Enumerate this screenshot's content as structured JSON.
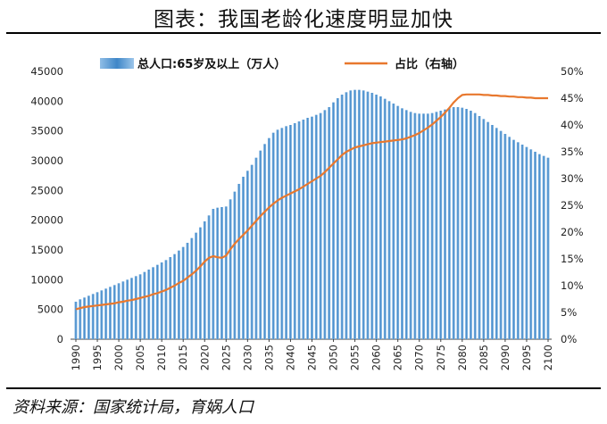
{
  "title": "图表：我国老龄化速度明显加快",
  "source": "资料来源：国家统计局，育娲人口",
  "colors": {
    "bars": "#4a8cc9",
    "line": "#e8782e"
  },
  "chart_data": {
    "type": "bar",
    "x": [
      1990,
      1991,
      1992,
      1993,
      1994,
      1995,
      1996,
      1997,
      1998,
      1999,
      2000,
      2001,
      2002,
      2003,
      2004,
      2005,
      2006,
      2007,
      2008,
      2009,
      2010,
      2011,
      2012,
      2013,
      2014,
      2015,
      2016,
      2017,
      2018,
      2019,
      2020,
      2021,
      2022,
      2023,
      2024,
      2025,
      2026,
      2027,
      2028,
      2029,
      2030,
      2031,
      2032,
      2033,
      2034,
      2035,
      2036,
      2037,
      2038,
      2039,
      2040,
      2041,
      2042,
      2043,
      2044,
      2045,
      2046,
      2047,
      2048,
      2049,
      2050,
      2051,
      2052,
      2053,
      2054,
      2055,
      2056,
      2057,
      2058,
      2059,
      2060,
      2061,
      2062,
      2063,
      2064,
      2065,
      2066,
      2067,
      2068,
      2069,
      2070,
      2071,
      2072,
      2073,
      2074,
      2075,
      2076,
      2077,
      2078,
      2079,
      2080,
      2081,
      2082,
      2083,
      2084,
      2085,
      2086,
      2087,
      2088,
      2089,
      2090,
      2091,
      2092,
      2093,
      2094,
      2095,
      2096,
      2097,
      2098,
      2099,
      2100
    ],
    "x_ticks": [
      "1990",
      "1995",
      "2000",
      "2005",
      "2010",
      "2015",
      "2020",
      "2025",
      "2030",
      "2035",
      "2040",
      "2045",
      "2050",
      "2055",
      "2060",
      "2065",
      "2070",
      "2075",
      "2080",
      "2085",
      "2090",
      "2095",
      "2100"
    ],
    "y_left_ticks": [
      "0",
      "5000",
      "10000",
      "15000",
      "20000",
      "25000",
      "30000",
      "35000",
      "40000",
      "45000"
    ],
    "y_right_ticks": [
      "0%",
      "5%",
      "10%",
      "15%",
      "20%",
      "25%",
      "30%",
      "35%",
      "40%",
      "45%",
      "50%"
    ],
    "ylim_left": [
      0,
      45000
    ],
    "ylim_right": [
      0,
      50
    ],
    "series": [
      {
        "name": "总人口:65岁及以上（万人）",
        "type": "bar",
        "axis": "left",
        "values": [
          6300,
          6700,
          7000,
          7300,
          7600,
          7900,
          8200,
          8500,
          8800,
          9100,
          9400,
          9700,
          10000,
          10300,
          10600,
          10900,
          11300,
          11700,
          12100,
          12500,
          12900,
          13300,
          13800,
          14300,
          14900,
          15500,
          16200,
          17000,
          17900,
          18800,
          19800,
          20800,
          21900,
          22100,
          22200,
          22300,
          23500,
          24800,
          26100,
          27300,
          28300,
          29300,
          30500,
          31700,
          32800,
          33800,
          34700,
          35200,
          35500,
          35800,
          36000,
          36300,
          36600,
          36900,
          37200,
          37400,
          37700,
          38000,
          38500,
          39000,
          39800,
          40500,
          41100,
          41500,
          41800,
          41900,
          41900,
          41800,
          41600,
          41400,
          41100,
          40800,
          40400,
          40000,
          39600,
          39200,
          38800,
          38500,
          38200,
          38000,
          37900,
          37900,
          37900,
          38000,
          38200,
          38400,
          38600,
          38800,
          39000,
          39000,
          38900,
          38700,
          38400,
          38000,
          37500,
          37000,
          36500,
          36000,
          35500,
          35000,
          34500,
          34000,
          33500,
          33100,
          32700,
          32300,
          31900,
          31500,
          31100,
          30800,
          30500
        ]
      },
      {
        "name": "占比（右轴）",
        "type": "line",
        "axis": "right",
        "values": [
          5.6,
          5.8,
          6.0,
          6.1,
          6.2,
          6.3,
          6.4,
          6.5,
          6.6,
          6.7,
          6.9,
          7.0,
          7.2,
          7.3,
          7.5,
          7.7,
          7.9,
          8.1,
          8.4,
          8.6,
          8.9,
          9.2,
          9.6,
          10.0,
          10.5,
          10.9,
          11.5,
          12.1,
          12.8,
          13.6,
          14.5,
          15.2,
          15.5,
          15.3,
          15.2,
          15.6,
          16.8,
          17.8,
          18.7,
          19.5,
          20.3,
          21.2,
          22.1,
          23.0,
          23.8,
          24.6,
          25.3,
          25.9,
          26.4,
          26.8,
          27.2,
          27.6,
          28.0,
          28.5,
          29.0,
          29.5,
          30.0,
          30.5,
          31.2,
          32.0,
          32.8,
          33.6,
          34.4,
          35.0,
          35.4,
          35.8,
          36.0,
          36.2,
          36.4,
          36.6,
          36.7,
          36.8,
          36.9,
          37.0,
          37.1,
          37.2,
          37.3,
          37.5,
          37.8,
          38.1,
          38.5,
          39.0,
          39.5,
          40.1,
          40.8,
          41.5,
          42.3,
          43.2,
          44.2,
          45.0,
          45.6,
          45.7,
          45.7,
          45.7,
          45.7,
          45.6,
          45.6,
          45.5,
          45.5,
          45.4,
          45.4,
          45.3,
          45.3,
          45.2,
          45.2,
          45.1,
          45.1,
          45.0,
          45.0,
          45.0,
          45.0
        ]
      }
    ]
  }
}
